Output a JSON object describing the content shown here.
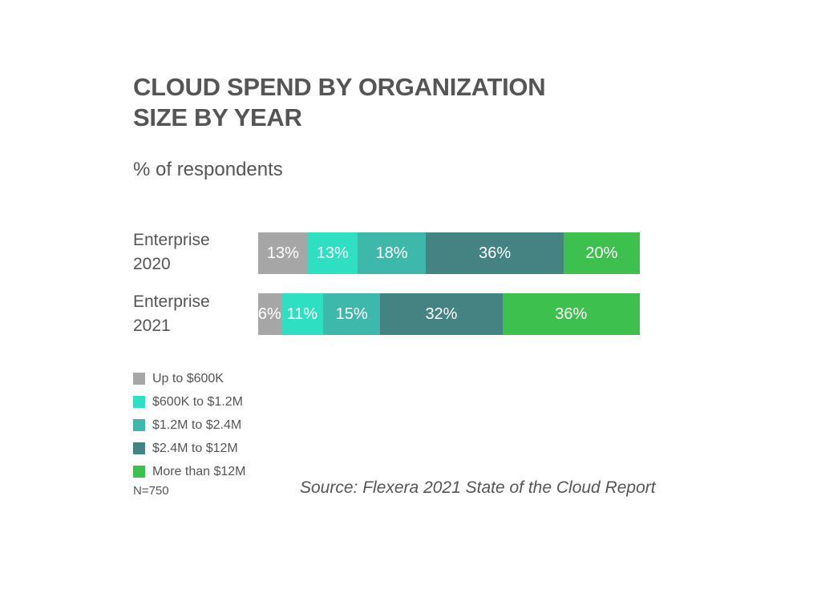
{
  "chart_data": {
    "type": "bar",
    "orientation": "horizontal",
    "stacked": true,
    "title": [
      "CLOUD SPEND BY ORGANIZATION",
      "SIZE BY YEAR"
    ],
    "subtitle": "% of respondents",
    "categories": [
      [
        "Enterprise",
        "2020"
      ],
      [
        "Enterprise",
        "2021"
      ]
    ],
    "series": [
      {
        "name": "Up to $600K",
        "color": "#a6a6a6",
        "values": [
          13,
          6
        ]
      },
      {
        "name": "$600K to $1.2M",
        "color": "#2ee0c1",
        "values": [
          13,
          11
        ]
      },
      {
        "name": "$1.2M to $2.4M",
        "color": "#3fb8ac",
        "values": [
          18,
          15
        ]
      },
      {
        "name": "$2.4M to $12M",
        "color": "#458282",
        "values": [
          36,
          32
        ]
      },
      {
        "name": "More than $12M",
        "color": "#3ec04e",
        "values": [
          20,
          36
        ]
      }
    ],
    "value_suffix": "%",
    "legend_position": "bottom-left",
    "grid": false
  },
  "footnote": "N=750",
  "source": "Source: Flexera 2021 State of the Cloud Report"
}
